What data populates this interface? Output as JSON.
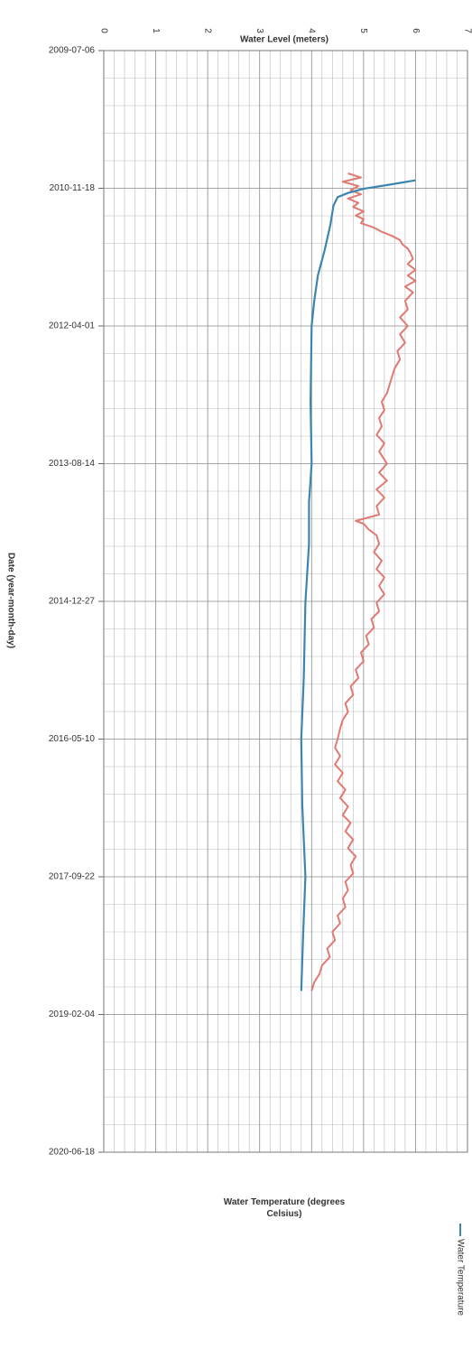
{
  "chart_data": {
    "type": "line",
    "orientation": "horizontal",
    "y_label": "Water Level (meters)",
    "x_label": "Date (year-month-day)",
    "annotation": "Water Temperature (degrees Celsius)",
    "xlim": [
      "2009-07-06",
      "2020-06-18"
    ],
    "xticks": [
      "2009-07-06",
      "2010-11-18",
      "2012-04-01",
      "2013-08-14",
      "2014-12-27",
      "2016-05-10",
      "2017-09-22",
      "2019-02-04",
      "2020-06-18"
    ],
    "ylim": [
      0,
      7
    ],
    "yticks": [
      0,
      1,
      2,
      3,
      4,
      5,
      6,
      7
    ],
    "grid": true,
    "minor_grid": 5,
    "series": [
      {
        "name": "Water Temperature",
        "color": "#3d85b0",
        "x": [
          "2010-10-20",
          "2010-11-05",
          "2010-11-20",
          "2010-12-05",
          "2010-12-20",
          "2011-01-20",
          "2011-04-01",
          "2011-07-01",
          "2011-10-01",
          "2012-01-01",
          "2012-04-01",
          "2013-01-01",
          "2013-08-14",
          "2014-01-01",
          "2014-06-01",
          "2015-01-01",
          "2015-10-01",
          "2016-05-10",
          "2017-01-01",
          "2017-09-22",
          "2018-04-01",
          "2018-11-10"
        ],
        "values": [
          6.0,
          5.5,
          5.0,
          4.7,
          4.5,
          4.42,
          4.36,
          4.25,
          4.12,
          4.05,
          4.0,
          3.98,
          4.0,
          3.95,
          3.95,
          3.88,
          3.85,
          3.8,
          3.82,
          3.88,
          3.84,
          3.8
        ]
      },
      {
        "color": "#e07a72",
        "x": [
          "2010-09-25",
          "2010-10-10",
          "2010-10-25",
          "2010-11-10",
          "2010-11-25",
          "2010-12-10",
          "2010-12-25",
          "2011-01-10",
          "2011-01-25",
          "2011-02-10",
          "2011-02-25",
          "2011-03-10",
          "2011-03-25",
          "2011-04-10",
          "2011-04-25",
          "2011-05-10",
          "2011-05-25",
          "2011-06-10",
          "2011-06-25",
          "2011-07-10",
          "2011-08-01",
          "2011-08-20",
          "2011-09-10",
          "2011-10-01",
          "2011-10-20",
          "2011-11-10",
          "2011-12-01",
          "2012-01-01",
          "2012-02-01",
          "2012-03-01",
          "2012-04-01",
          "2012-05-01",
          "2012-06-01",
          "2012-07-01",
          "2012-08-01",
          "2012-09-01",
          "2012-10-01",
          "2012-11-01",
          "2012-12-01",
          "2013-01-01",
          "2013-02-01",
          "2013-03-01",
          "2013-04-01",
          "2013-05-01",
          "2013-06-01",
          "2013-07-01",
          "2013-08-14",
          "2013-09-15",
          "2013-10-15",
          "2013-11-15",
          "2013-12-15",
          "2014-01-15",
          "2014-02-15",
          "2014-03-10",
          "2014-03-20",
          "2014-04-10",
          "2014-05-01",
          "2014-06-01",
          "2014-07-01",
          "2014-08-01",
          "2014-09-01",
          "2014-10-01",
          "2014-11-01",
          "2014-12-01",
          "2015-01-01",
          "2015-02-01",
          "2015-03-01",
          "2015-04-01",
          "2015-05-01",
          "2015-06-01",
          "2015-07-01",
          "2015-08-01",
          "2015-09-01",
          "2015-10-01",
          "2015-11-01",
          "2015-12-01",
          "2016-01-01",
          "2016-02-01",
          "2016-03-01",
          "2016-04-01",
          "2016-05-10",
          "2016-06-10",
          "2016-07-10",
          "2016-08-10",
          "2016-09-10",
          "2016-10-10",
          "2016-11-10",
          "2016-12-10",
          "2017-01-10",
          "2017-02-10",
          "2017-03-10",
          "2017-04-10",
          "2017-05-10",
          "2017-06-10",
          "2017-07-10",
          "2017-08-10",
          "2017-09-10",
          "2017-10-10",
          "2017-11-10",
          "2017-12-10",
          "2018-01-10",
          "2018-02-10",
          "2018-03-10",
          "2018-04-10",
          "2018-05-10",
          "2018-06-10",
          "2018-07-10",
          "2018-08-10",
          "2018-09-10",
          "2018-10-10",
          "2018-11-10"
        ],
        "values": [
          4.7,
          4.95,
          4.6,
          4.9,
          4.75,
          4.95,
          4.7,
          4.9,
          4.8,
          5.0,
          4.85,
          5.0,
          4.95,
          5.2,
          5.35,
          5.55,
          5.7,
          5.75,
          5.85,
          5.9,
          5.95,
          5.85,
          6.0,
          5.85,
          6.0,
          5.8,
          5.95,
          5.8,
          5.85,
          5.7,
          5.85,
          5.7,
          5.8,
          5.65,
          5.7,
          5.6,
          5.55,
          5.5,
          5.45,
          5.35,
          5.4,
          5.3,
          5.35,
          5.25,
          5.4,
          5.3,
          5.45,
          5.3,
          5.45,
          5.25,
          5.4,
          5.25,
          5.3,
          4.85,
          5.0,
          5.1,
          5.25,
          5.3,
          5.2,
          5.35,
          5.25,
          5.4,
          5.3,
          5.4,
          5.25,
          5.3,
          5.15,
          5.2,
          5.05,
          5.1,
          4.95,
          5.0,
          4.85,
          4.9,
          4.75,
          4.8,
          4.65,
          4.7,
          4.6,
          4.55,
          4.5,
          4.45,
          4.55,
          4.45,
          4.6,
          4.5,
          4.65,
          4.55,
          4.7,
          4.6,
          4.75,
          4.65,
          4.8,
          4.7,
          4.85,
          4.75,
          4.8,
          4.65,
          4.7,
          4.6,
          4.65,
          4.5,
          4.55,
          4.4,
          4.45,
          4.3,
          4.35,
          4.2,
          4.15,
          4.05,
          4.0
        ]
      }
    ]
  }
}
